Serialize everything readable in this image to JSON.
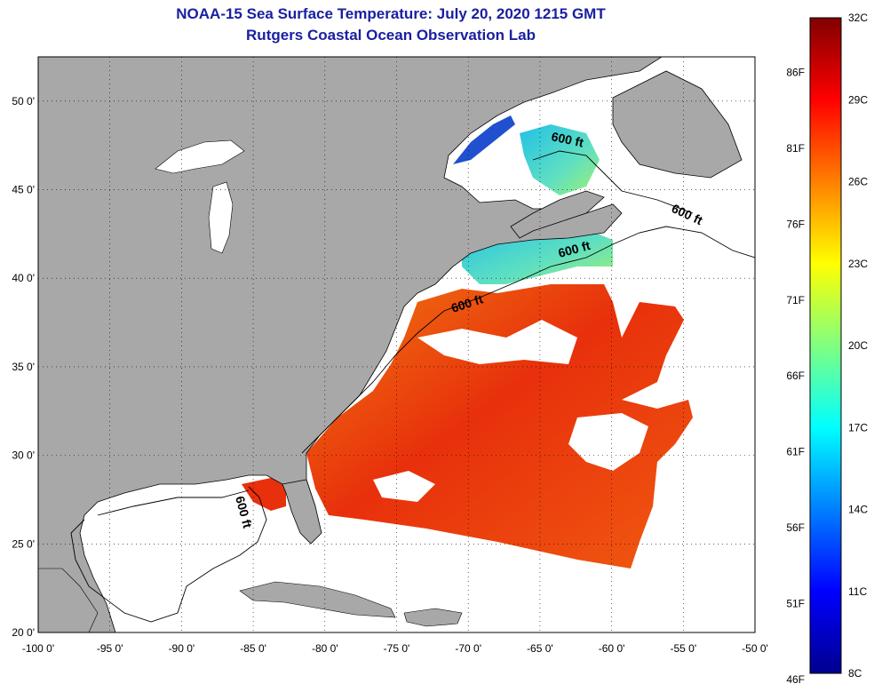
{
  "header": {
    "title": "NOAA-15 Sea Surface Temperature:  July 20, 2020 1215 GMT",
    "subtitle": "Rutgers Coastal Ocean Observation Lab"
  },
  "axes": {
    "lon_ticks": [
      "-100 0'",
      "-95 0'",
      "-90 0'",
      "-85 0'",
      "-80 0'",
      "-75 0'",
      "-70 0'",
      "-65 0'",
      "-60 0'",
      "-55 0'",
      "-50 0'"
    ],
    "lat_ticks": [
      "50 0'",
      "45 0'",
      "40 0'",
      "35 0'",
      "30 0'",
      "25 0'",
      "20 0'"
    ],
    "lon_range": [
      -100,
      -50
    ],
    "lat_range": [
      20,
      52.5
    ],
    "grid": "dotted"
  },
  "contours": {
    "label": "600 ft"
  },
  "colorbar": {
    "fahrenheit": [
      "86F",
      "81F",
      "76F",
      "71F",
      "66F",
      "61F",
      "56F",
      "51F",
      "46F"
    ],
    "celsius": [
      "32C",
      "29C",
      "26C",
      "23C",
      "20C",
      "17C",
      "14C",
      "11C",
      "8C"
    ],
    "range_c": [
      8,
      32
    ],
    "colormap": "jet"
  },
  "colors": {
    "land": "#a8a8a8",
    "title": "#1a20a0",
    "warm": "#e83a0c",
    "cold": "#1030c0"
  }
}
